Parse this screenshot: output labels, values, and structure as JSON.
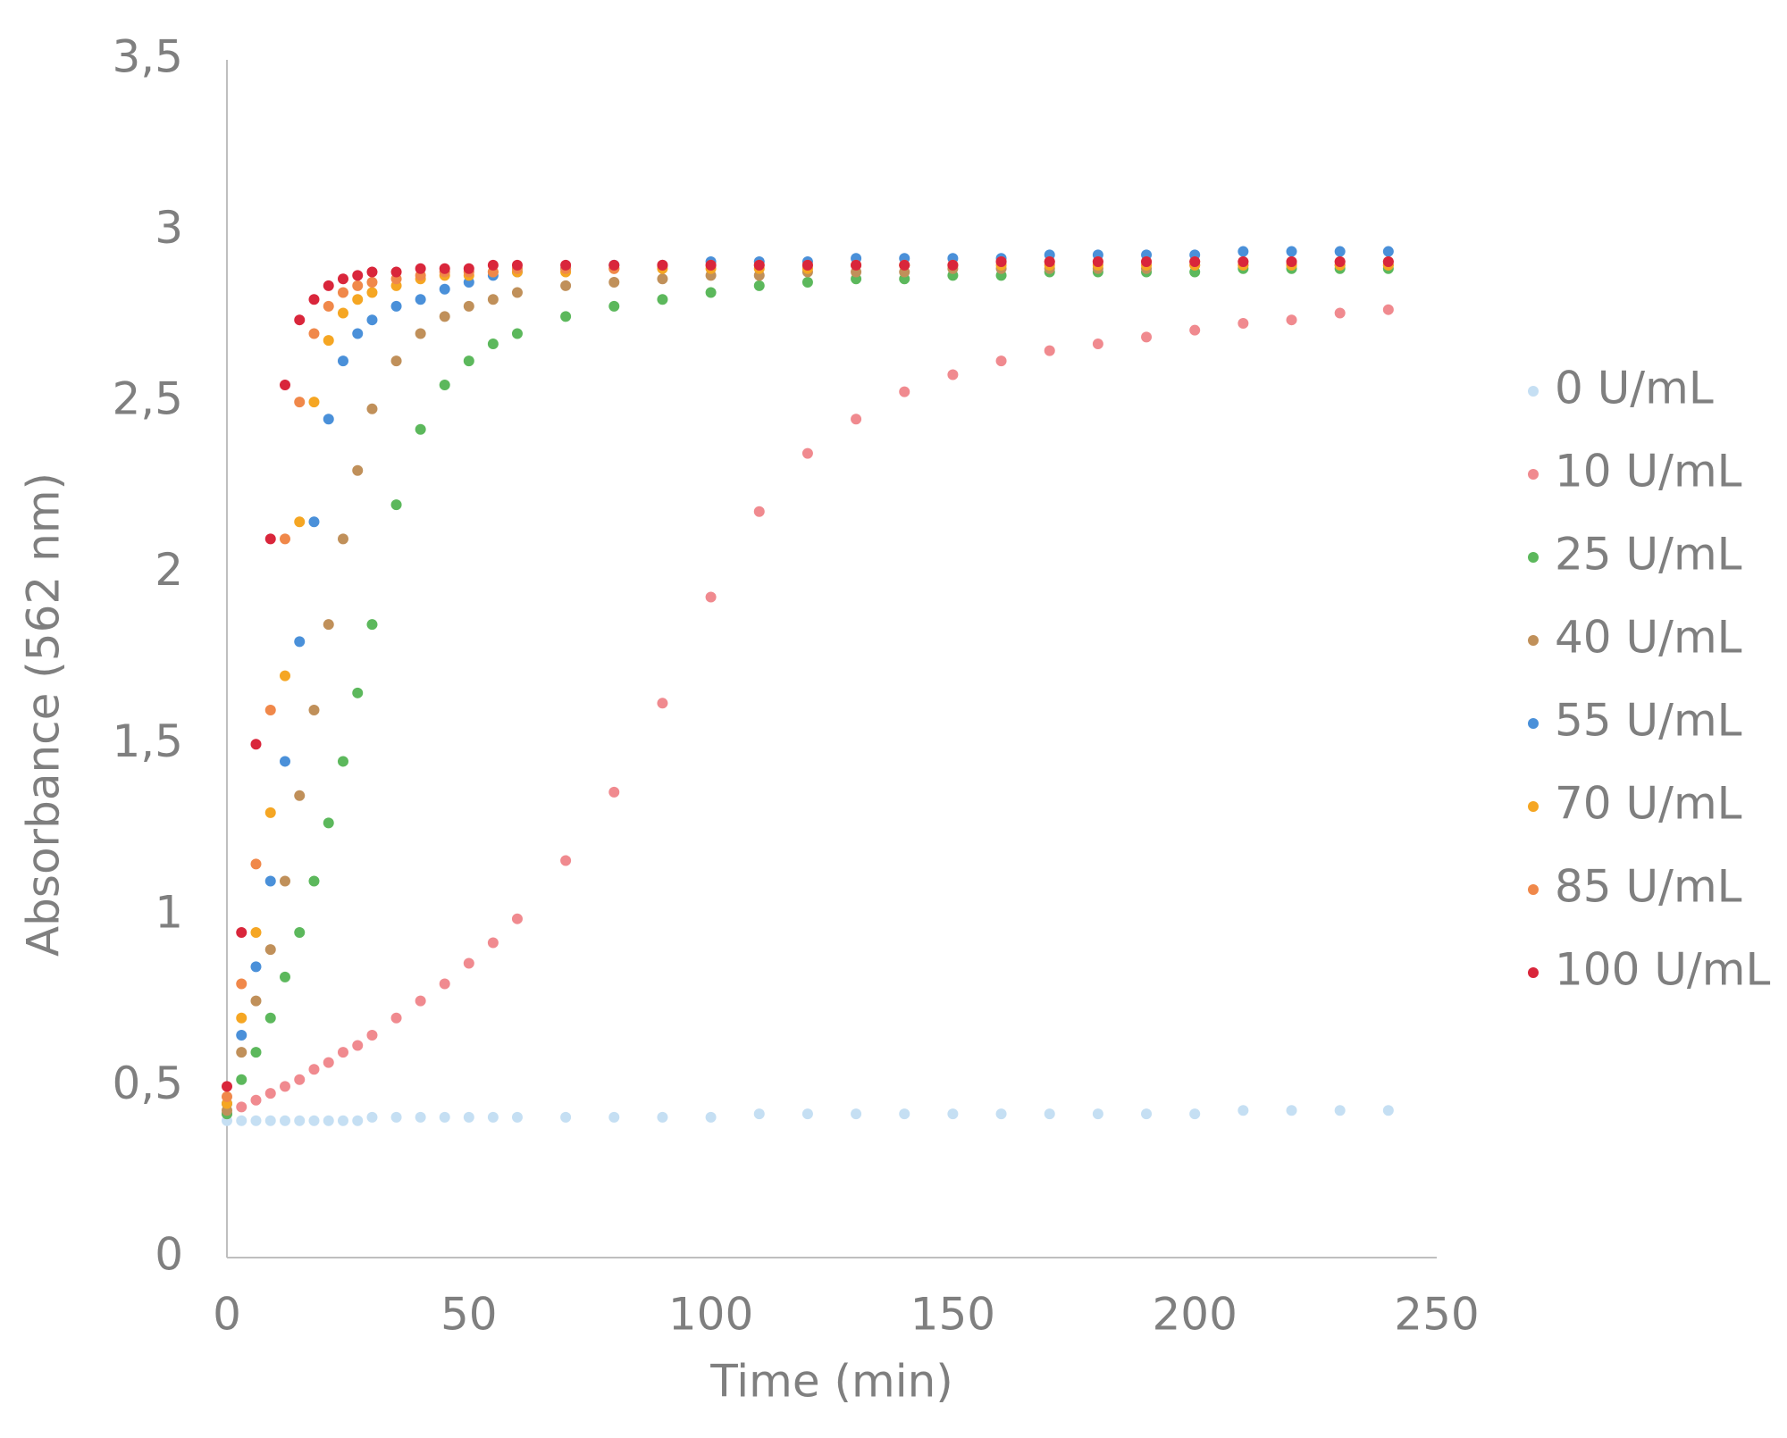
{
  "chart_data": {
    "type": "scatter",
    "x_label": "Time (min)",
    "y_label": "Absorbance (562 nm)",
    "xlim": [
      0,
      250
    ],
    "xticks": [
      0,
      50,
      100,
      150,
      200,
      250
    ],
    "ylim": [
      0,
      3.5
    ],
    "yticks": [
      0,
      {
        "value": 0.5,
        "label": "0,5"
      },
      1,
      {
        "value": 1.5,
        "label": "1,5"
      },
      2,
      {
        "value": 2.5,
        "label": "2,5"
      },
      3,
      {
        "value": 3.5,
        "label": "3,5"
      }
    ],
    "grid": false,
    "legend": "right",
    "x": [
      0,
      3,
      6,
      9,
      12,
      15,
      18,
      21,
      24,
      27,
      30,
      35,
      40,
      45,
      50,
      55,
      60,
      70,
      80,
      90,
      100,
      110,
      120,
      130,
      140,
      150,
      160,
      170,
      180,
      190,
      200,
      210,
      220,
      230,
      240
    ],
    "series": [
      {
        "name": "0 U/mL",
        "color": "#c5dff3",
        "values": [
          0.4,
          0.4,
          0.4,
          0.4,
          0.4,
          0.4,
          0.4,
          0.4,
          0.4,
          0.4,
          0.41,
          0.41,
          0.41,
          0.41,
          0.41,
          0.41,
          0.41,
          0.41,
          0.41,
          0.41,
          0.41,
          0.42,
          0.42,
          0.42,
          0.42,
          0.42,
          0.42,
          0.42,
          0.42,
          0.42,
          0.42,
          0.43,
          0.43,
          0.43,
          0.43
        ]
      },
      {
        "name": "10 U/mL",
        "color": "#f08a8f",
        "values": [
          0.42,
          0.44,
          0.46,
          0.48,
          0.5,
          0.52,
          0.55,
          0.57,
          0.6,
          0.62,
          0.65,
          0.7,
          0.75,
          0.8,
          0.86,
          0.92,
          0.99,
          1.16,
          1.36,
          1.62,
          1.93,
          2.18,
          2.35,
          2.45,
          2.53,
          2.58,
          2.62,
          2.65,
          2.67,
          2.69,
          2.71,
          2.73,
          2.74,
          2.76,
          2.77
        ]
      },
      {
        "name": "25 U/mL",
        "color": "#5cb85c",
        "values": [
          0.42,
          0.52,
          0.6,
          0.7,
          0.82,
          0.95,
          1.1,
          1.27,
          1.45,
          1.65,
          1.85,
          2.2,
          2.42,
          2.55,
          2.62,
          2.67,
          2.7,
          2.75,
          2.78,
          2.8,
          2.82,
          2.84,
          2.85,
          2.86,
          2.86,
          2.87,
          2.87,
          2.88,
          2.88,
          2.88,
          2.88,
          2.89,
          2.89,
          2.89,
          2.89
        ]
      },
      {
        "name": "40 U/mL",
        "color": "#c0905a",
        "values": [
          0.43,
          0.6,
          0.75,
          0.9,
          1.1,
          1.35,
          1.6,
          1.85,
          2.1,
          2.3,
          2.48,
          2.62,
          2.7,
          2.75,
          2.78,
          2.8,
          2.82,
          2.84,
          2.85,
          2.86,
          2.87,
          2.87,
          2.88,
          2.88,
          2.88,
          2.89,
          2.89,
          2.89,
          2.89,
          2.89,
          2.9,
          2.9,
          2.9,
          2.9,
          2.9
        ]
      },
      {
        "name": "55 U/mL",
        "color": "#4a90d9",
        "values": [
          0.45,
          0.65,
          0.85,
          1.1,
          1.45,
          1.8,
          2.15,
          2.45,
          2.62,
          2.7,
          2.74,
          2.78,
          2.8,
          2.83,
          2.85,
          2.87,
          2.88,
          2.89,
          2.9,
          2.9,
          2.91,
          2.91,
          2.91,
          2.92,
          2.92,
          2.92,
          2.92,
          2.93,
          2.93,
          2.93,
          2.93,
          2.94,
          2.94,
          2.94,
          2.94
        ]
      },
      {
        "name": "70 U/mL",
        "color": "#f5a623",
        "values": [
          0.45,
          0.7,
          0.95,
          1.3,
          1.7,
          2.15,
          2.5,
          2.68,
          2.76,
          2.8,
          2.82,
          2.84,
          2.86,
          2.87,
          2.87,
          2.88,
          2.88,
          2.88,
          2.89,
          2.89,
          2.89,
          2.89,
          2.89,
          2.9,
          2.9,
          2.9,
          2.9,
          2.9,
          2.9,
          2.9,
          2.9,
          2.9,
          2.9,
          2.9,
          2.9
        ]
      },
      {
        "name": "85 U/mL",
        "color": "#f0884a",
        "values": [
          0.47,
          0.8,
          1.15,
          1.6,
          2.1,
          2.5,
          2.7,
          2.78,
          2.82,
          2.84,
          2.85,
          2.86,
          2.87,
          2.88,
          2.88,
          2.88,
          2.89,
          2.89,
          2.89,
          2.9,
          2.9,
          2.9,
          2.9,
          2.9,
          2.9,
          2.9,
          2.91,
          2.91,
          2.91,
          2.91,
          2.91,
          2.91,
          2.91,
          2.91,
          2.91
        ]
      },
      {
        "name": "100 U/mL",
        "color": "#d9263b",
        "values": [
          0.5,
          0.95,
          1.5,
          2.1,
          2.55,
          2.74,
          2.8,
          2.84,
          2.86,
          2.87,
          2.88,
          2.88,
          2.89,
          2.89,
          2.89,
          2.9,
          2.9,
          2.9,
          2.9,
          2.9,
          2.9,
          2.9,
          2.9,
          2.9,
          2.9,
          2.9,
          2.91,
          2.91,
          2.91,
          2.91,
          2.91,
          2.91,
          2.91,
          2.91,
          2.91
        ]
      }
    ]
  }
}
